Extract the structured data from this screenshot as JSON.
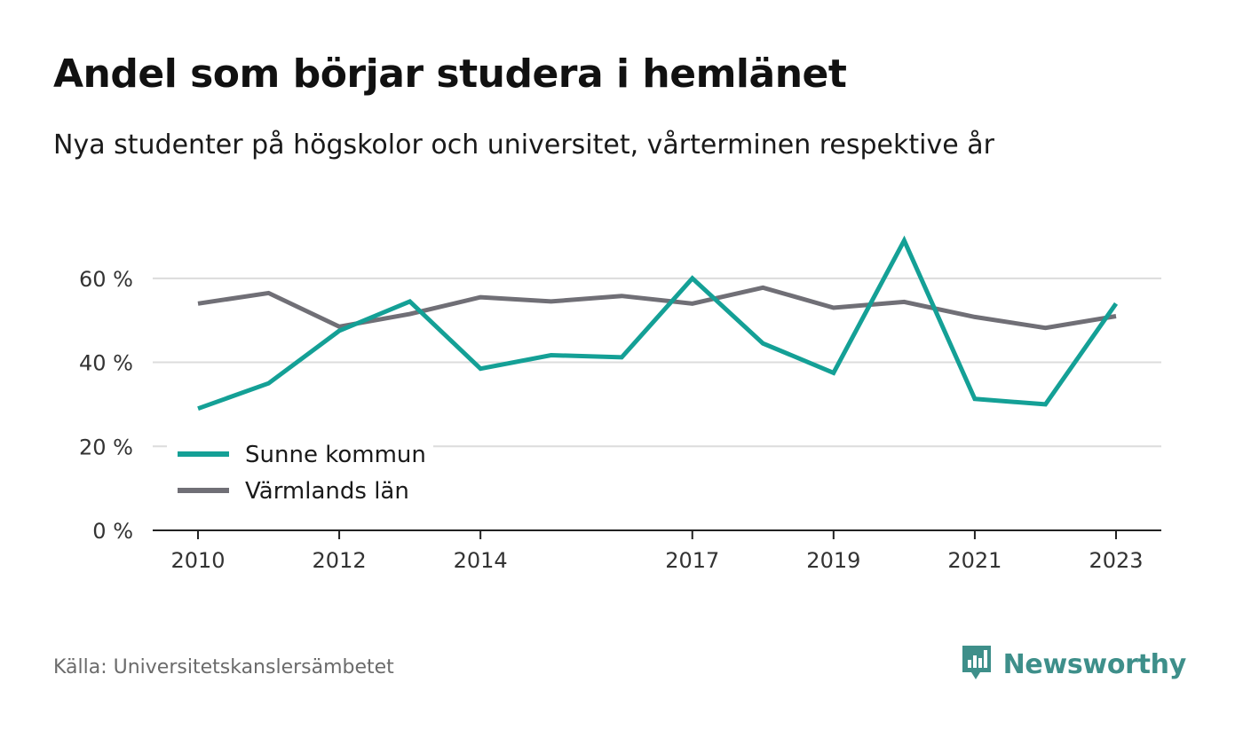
{
  "header": {
    "title": "Andel som börjar studera i hemlänet",
    "subtitle": "Nya studenter på högskolor och universitet, vårterminen respektive år"
  },
  "footer": {
    "source": "Källa: Universitetskanslersämbetet",
    "brand": "Newsworthy",
    "brand_icon": "bar-chart-speech-bubble-icon",
    "brand_color": "#3e8f8a"
  },
  "chart_data": {
    "type": "line",
    "x": [
      2010,
      2011,
      2012,
      2013,
      2014,
      2015,
      2016,
      2017,
      2018,
      2019,
      2020,
      2021,
      2022,
      2023
    ],
    "x_tick_labels": [
      "2010",
      "2012",
      "2014",
      "2017",
      "2019",
      "2021",
      "2023"
    ],
    "y_ticks": [
      0,
      20,
      40,
      60
    ],
    "y_tick_labels": [
      "0 %",
      "20 %",
      "40 %",
      "60 %"
    ],
    "ylim": [
      0,
      72
    ],
    "grid": true,
    "legend_position": "bottom-left",
    "series": [
      {
        "name": "Sunne kommun",
        "color": "#14a096",
        "values": [
          29.0,
          35.0,
          47.5,
          54.5,
          38.5,
          41.7,
          41.2,
          60.0,
          44.5,
          37.5,
          69.0,
          31.3,
          30.0,
          54.0
        ]
      },
      {
        "name": "Värmlands län",
        "color": "#706f76",
        "values": [
          54.0,
          56.5,
          48.5,
          51.5,
          55.5,
          54.5,
          55.8,
          54.0,
          57.8,
          53.0,
          54.4,
          50.8,
          48.2,
          51.0
        ]
      }
    ]
  }
}
